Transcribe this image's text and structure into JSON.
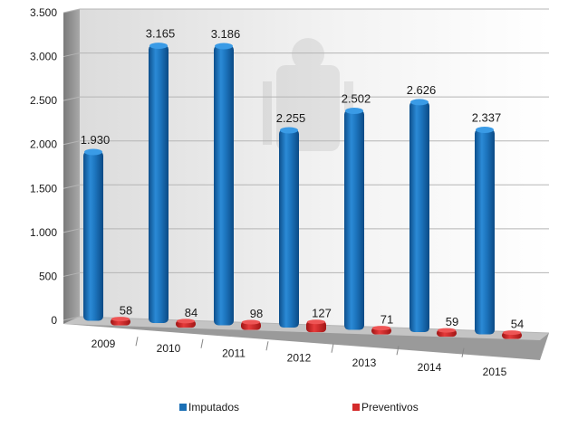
{
  "chart_data": {
    "type": "bar",
    "categories": [
      "2009",
      "2010",
      "2011",
      "2012",
      "2013",
      "2014",
      "2015"
    ],
    "series": [
      {
        "name": "Imputados",
        "color": "#1a6fb5",
        "values": [
          1930,
          3165,
          3186,
          2255,
          2502,
          2626,
          2337
        ],
        "labels": [
          "1.930",
          "3.165",
          "3.186",
          "2.255",
          "2.502",
          "2.626",
          "2.337"
        ]
      },
      {
        "name": "Preventivos",
        "color": "#d42b2b",
        "values": [
          58,
          84,
          98,
          127,
          71,
          59,
          54
        ],
        "labels": [
          "58",
          "84",
          "98",
          "127",
          "71",
          "59",
          "54"
        ]
      }
    ],
    "ylim": [
      0,
      3500
    ],
    "yticks": [
      0,
      500,
      1000,
      1500,
      2000,
      2500,
      3000,
      3500
    ],
    "ytick_labels": [
      "0",
      "500",
      "1.000",
      "1.500",
      "2.000",
      "2.500",
      "3.000",
      "3.500"
    ],
    "title": "",
    "xlabel": "",
    "ylabel": "",
    "grid": true,
    "legend_position": "bottom"
  }
}
